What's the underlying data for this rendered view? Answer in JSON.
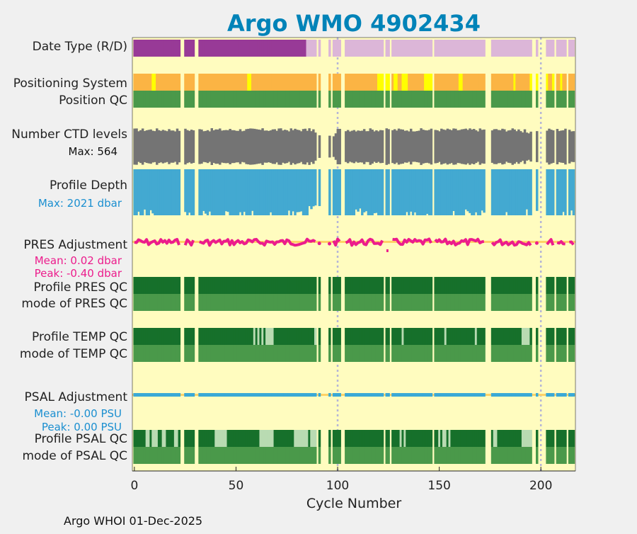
{
  "chart_data": {
    "type": "heatmap",
    "title": "Argo WMO 4902434",
    "xlabel": "Cycle Number",
    "xlim": [
      -1,
      217
    ],
    "xticks": [
      0,
      50,
      100,
      150,
      200
    ],
    "vlines": [
      100,
      200
    ],
    "missing_cycles": [
      23,
      24,
      30,
      31,
      90,
      92,
      93,
      94,
      95,
      97,
      102,
      103,
      123,
      126,
      147,
      173,
      174,
      175,
      196,
      197,
      199,
      200,
      201,
      202,
      207,
      213
    ],
    "labels": {
      "date_type": "Date Type (R/D)",
      "positioning_system": "Positioning System",
      "position_qc": "Position QC",
      "ctd_levels": "Number CTD levels",
      "ctd_max": "Max: 564",
      "profile_depth": "Profile Depth",
      "depth_max": "Max: 2021 dbar",
      "pres_adj": "PRES Adjustment",
      "pres_mean": "Mean: 0.02 dbar",
      "pres_peak": "Peak: -0.40 dbar",
      "profile_pres_qc": "Profile PRES QC",
      "mode_pres_qc": "mode of PRES QC",
      "profile_temp_qc": "Profile TEMP QC",
      "mode_temp_qc": "mode of TEMP QC",
      "psal_adj": "PSAL Adjustment",
      "psal_mean": "Mean: -0.00 PSU",
      "psal_peak": "Peak: 0.00 PSU",
      "profile_psal_qc": "Profile PSAL QC",
      "mode_psal_qc": "mode of PSAL QC"
    },
    "date_type": {
      "realtime_until_cycle": 84,
      "realtime": "R",
      "delayed": "D"
    },
    "positioning_system_alt_cycles": [
      9,
      10,
      56,
      57,
      92,
      120,
      121,
      122,
      123,
      124,
      125,
      126,
      128,
      129,
      132,
      133,
      134,
      143,
      144,
      145,
      146,
      160,
      161,
      187,
      195,
      198,
      200,
      203,
      206,
      210
    ],
    "ctd_levels": {
      "max": 564
    },
    "profile_depth": {
      "max_dbar": 2021
    },
    "pres_adjustment": {
      "mean_dbar": 0.02,
      "peak_dbar": -0.4
    },
    "temp_qc_light_cycles": [
      59,
      61,
      63,
      65,
      66,
      67,
      68,
      89,
      90,
      132,
      153,
      168,
      191,
      192,
      193,
      194
    ],
    "psal_adjustment": {
      "mean_psu": -0.0,
      "peak_psu": 0.0
    },
    "psal_qc_light_cycles": [
      6,
      7,
      9,
      10,
      11,
      14,
      15,
      20,
      21,
      40,
      41,
      42,
      43,
      44,
      45,
      62,
      63,
      64,
      65,
      66,
      67,
      68,
      79,
      80,
      81,
      82,
      83,
      84,
      85,
      87,
      88,
      89,
      90,
      131,
      133,
      150,
      152,
      153,
      155,
      177,
      178,
      191,
      192,
      193,
      194,
      195
    ]
  },
  "colors": {
    "background": "#fffcbf",
    "page": "#f0f0f0",
    "realtime": "#983a97",
    "delayed": "#dcb6d8",
    "gps": "#fbb444",
    "alt_positioning": "#ffff00",
    "qc_good": "#4a994a",
    "qc_good_dark": "#16702b",
    "qc_light": "#b9dbb2",
    "ctd": "#747474",
    "depth": "#43a9d1",
    "pres_line": "#ec1c8c",
    "pres_band": "#ffd266",
    "psal": "#3aa9d6",
    "title": "#0083b8",
    "stat_pres": "#ec1c8c",
    "stat_depth": "#1b8fd0"
  },
  "footer": "Argo WHOI 01-Dec-2025"
}
